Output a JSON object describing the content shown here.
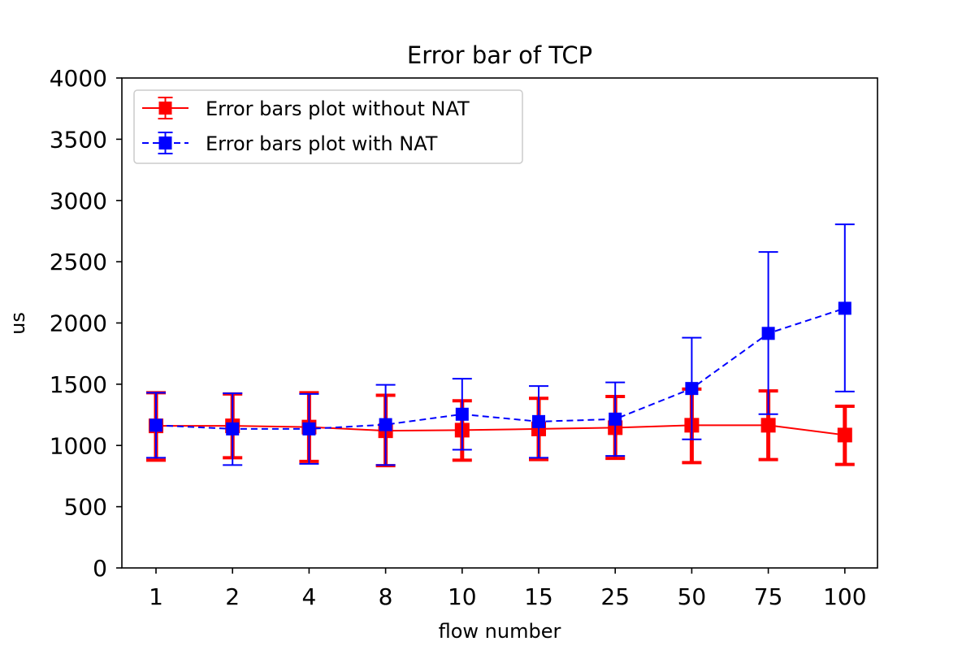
{
  "chart_data": {
    "type": "line",
    "title": "Error bar of TCP",
    "xlabel": "flow number",
    "ylabel": "us",
    "categories": [
      "1",
      "2",
      "4",
      "8",
      "10",
      "15",
      "25",
      "50",
      "75",
      "100"
    ],
    "ylim": [
      0,
      4000
    ],
    "yticks": [
      0,
      500,
      1000,
      1500,
      2000,
      2500,
      3000,
      3500,
      4000
    ],
    "grid": false,
    "legend_position": "top-left",
    "series": [
      {
        "name": "Error bars plot without NAT",
        "color": "#ff0000",
        "line_style": "solid",
        "marker": "square",
        "values": [
          1160,
          1160,
          1150,
          1120,
          1125,
          1135,
          1145,
          1165,
          1165,
          1085
        ],
        "lower": [
          880,
          900,
          870,
          835,
          880,
          885,
          895,
          860,
          885,
          845
        ],
        "upper": [
          1430,
          1420,
          1430,
          1410,
          1365,
          1385,
          1400,
          1460,
          1445,
          1320
        ]
      },
      {
        "name": "Error bars plot with NAT",
        "color": "#0000ff",
        "line_style": "dashed",
        "marker": "square",
        "values": [
          1165,
          1135,
          1135,
          1170,
          1255,
          1195,
          1215,
          1465,
          1915,
          2120
        ],
        "lower": [
          900,
          840,
          850,
          840,
          965,
          900,
          915,
          1050,
          1255,
          1440
        ],
        "upper": [
          1430,
          1425,
          1420,
          1495,
          1545,
          1485,
          1515,
          1880,
          2580,
          2805
        ]
      }
    ]
  }
}
